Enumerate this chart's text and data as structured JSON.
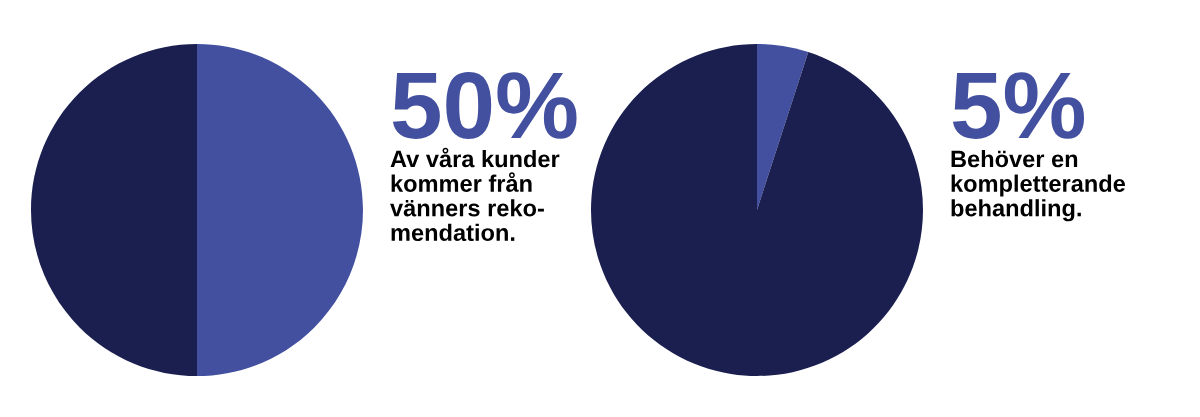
{
  "chart_data": [
    {
      "type": "pie",
      "categories": [
        null,
        null
      ],
      "values": [
        50,
        50
      ],
      "colors": [
        "#4350a0",
        "#1b1f50"
      ],
      "annotations": [
        "50%",
        "Av våra kunder\nkommer från\nvänners reko-\nmendation."
      ]
    },
    {
      "type": "pie",
      "categories": [
        null,
        null
      ],
      "values": [
        5,
        95
      ],
      "colors": [
        "#4350a0",
        "#1b1f50"
      ],
      "annotations": [
        "5%",
        "Behöver en\nkompletterande\nbehandling."
      ]
    }
  ]
}
